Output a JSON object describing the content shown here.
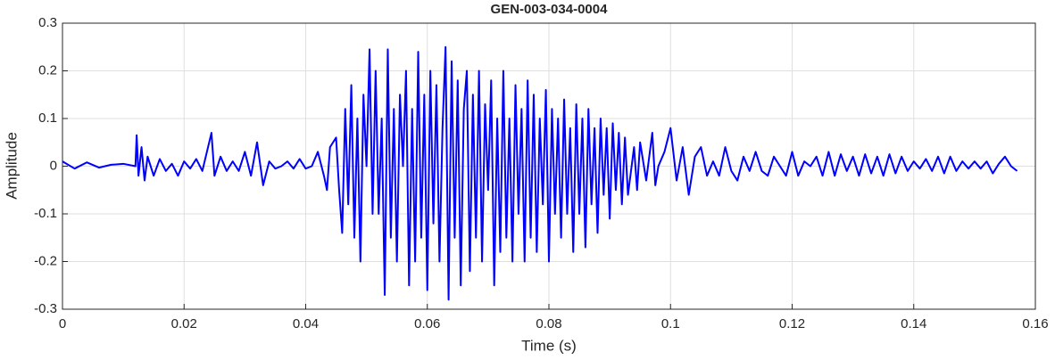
{
  "chart_data": {
    "type": "line",
    "title": "GEN-003-034-0004",
    "xlabel": "Time (s)",
    "ylabel": "Amplitude",
    "xlim": [
      0,
      0.16
    ],
    "ylim": [
      -0.3,
      0.3
    ],
    "xticks": [
      0,
      0.02,
      0.04,
      0.06,
      0.08,
      0.1,
      0.12,
      0.14,
      0.16
    ],
    "yticks": [
      -0.3,
      -0.2,
      -0.1,
      0,
      0.1,
      0.2,
      0.3
    ],
    "grid": true,
    "series": [
      {
        "color": "#0000ff",
        "x": [
          0,
          0.002,
          0.004,
          0.006,
          0.008,
          0.01,
          0.012,
          0.0122,
          0.0125,
          0.013,
          0.0135,
          0.014,
          0.015,
          0.016,
          0.017,
          0.018,
          0.019,
          0.02,
          0.021,
          0.022,
          0.023,
          0.0245,
          0.025,
          0.026,
          0.027,
          0.028,
          0.029,
          0.03,
          0.031,
          0.032,
          0.033,
          0.034,
          0.035,
          0.036,
          0.037,
          0.038,
          0.039,
          0.04,
          0.041,
          0.042,
          0.043,
          0.0435,
          0.044,
          0.045,
          0.0455,
          0.046,
          0.0465,
          0.047,
          0.0475,
          0.048,
          0.0485,
          0.049,
          0.0495,
          0.05,
          0.0505,
          0.051,
          0.0515,
          0.052,
          0.0525,
          0.053,
          0.0535,
          0.054,
          0.0545,
          0.055,
          0.0555,
          0.056,
          0.0565,
          0.057,
          0.0575,
          0.058,
          0.0585,
          0.059,
          0.0595,
          0.06,
          0.0605,
          0.061,
          0.0615,
          0.062,
          0.0625,
          0.063,
          0.0635,
          0.064,
          0.0645,
          0.065,
          0.0655,
          0.066,
          0.0665,
          0.067,
          0.0675,
          0.068,
          0.0685,
          0.069,
          0.0695,
          0.07,
          0.0705,
          0.071,
          0.0715,
          0.072,
          0.0725,
          0.073,
          0.0735,
          0.074,
          0.0745,
          0.075,
          0.0755,
          0.076,
          0.0765,
          0.077,
          0.0775,
          0.078,
          0.0785,
          0.079,
          0.0795,
          0.08,
          0.0805,
          0.081,
          0.0815,
          0.082,
          0.0825,
          0.083,
          0.0835,
          0.084,
          0.0845,
          0.085,
          0.0855,
          0.086,
          0.0865,
          0.087,
          0.0875,
          0.088,
          0.0885,
          0.089,
          0.0895,
          0.09,
          0.0905,
          0.091,
          0.0915,
          0.092,
          0.0925,
          0.093,
          0.094,
          0.0945,
          0.095,
          0.096,
          0.097,
          0.0975,
          0.098,
          0.099,
          0.1,
          0.101,
          0.102,
          0.103,
          0.104,
          0.105,
          0.106,
          0.107,
          0.108,
          0.109,
          0.11,
          0.111,
          0.112,
          0.113,
          0.114,
          0.115,
          0.116,
          0.117,
          0.118,
          0.119,
          0.12,
          0.121,
          0.122,
          0.123,
          0.124,
          0.125,
          0.126,
          0.127,
          0.128,
          0.129,
          0.13,
          0.131,
          0.132,
          0.133,
          0.134,
          0.135,
          0.136,
          0.137,
          0.138,
          0.139,
          0.14,
          0.141,
          0.142,
          0.143,
          0.144,
          0.145,
          0.146,
          0.147,
          0.148,
          0.149,
          0.15,
          0.151,
          0.152,
          0.153,
          0.154,
          0.155,
          0.156,
          0.157
        ],
        "values": [
          0.01,
          -0.005,
          0.008,
          -0.003,
          0.003,
          0.005,
          0,
          0.065,
          -0.02,
          0.04,
          -0.03,
          0.02,
          -0.02,
          0.015,
          -0.01,
          0.005,
          -0.02,
          0.01,
          -0.005,
          0.015,
          -0.01,
          0.07,
          -0.02,
          0.02,
          -0.01,
          0.01,
          -0.01,
          0.03,
          -0.02,
          0.05,
          -0.04,
          0.01,
          -0.005,
          0,
          0.01,
          -0.005,
          0.015,
          -0.005,
          0,
          0.03,
          -0.02,
          -0.05,
          0.04,
          0.06,
          -0.05,
          -0.14,
          0.12,
          -0.08,
          0.17,
          -0.15,
          0.1,
          -0.2,
          0.15,
          0,
          0.245,
          -0.1,
          0.2,
          -0.1,
          0.1,
          -0.27,
          0.245,
          -0.15,
          0.12,
          -0.2,
          0.15,
          0,
          0.2,
          -0.25,
          0.12,
          -0.2,
          0.24,
          -0.15,
          0.15,
          -0.26,
          0.2,
          -0.12,
          0.17,
          -0.2,
          0.08,
          0.25,
          -0.28,
          0.22,
          -0.15,
          0.18,
          -0.25,
          0.12,
          0.2,
          -0.22,
          0.15,
          -0.15,
          0.2,
          -0.2,
          0.13,
          -0.05,
          0.18,
          -0.25,
          0.1,
          -0.18,
          0.2,
          -0.15,
          0.1,
          -0.2,
          0.17,
          -0.1,
          0.12,
          -0.2,
          0.18,
          -0.15,
          0.15,
          -0.18,
          0.1,
          -0.08,
          0.16,
          -0.2,
          0.12,
          -0.1,
          0.1,
          -0.15,
          0.14,
          -0.1,
          0.08,
          -0.18,
          0.13,
          -0.1,
          0.1,
          -0.17,
          0.12,
          -0.08,
          0.08,
          -0.14,
          0.1,
          -0.06,
          0.08,
          -0.11,
          0.09,
          -0.05,
          0.07,
          -0.08,
          0.06,
          -0.06,
          0.04,
          -0.05,
          0.05,
          -0.03,
          0.07,
          -0.04,
          0,
          0.03,
          0.08,
          -0.03,
          0.04,
          -0.06,
          0.02,
          0.04,
          -0.02,
          0.01,
          -0.02,
          0.04,
          -0.01,
          -0.03,
          0.02,
          -0.01,
          0.03,
          -0.01,
          -0.02,
          0.02,
          0,
          -0.02,
          0.03,
          -0.02,
          0.01,
          0,
          0.02,
          -0.02,
          0.03,
          -0.02,
          0.025,
          -0.01,
          0.02,
          -0.02,
          0.025,
          -0.015,
          0.02,
          -0.02,
          0.025,
          -0.015,
          0.02,
          -0.01,
          0.01,
          -0.005,
          0.015,
          -0.01,
          0.02,
          -0.015,
          0.02,
          -0.01,
          0.01,
          -0.005,
          0.01,
          -0.005,
          0.01,
          -0.015,
          0.005,
          0.02,
          0,
          -0.01
        ]
      }
    ]
  }
}
